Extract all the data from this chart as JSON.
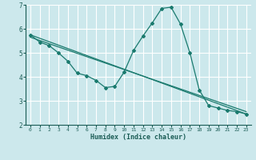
{
  "xlabel": "Humidex (Indice chaleur)",
  "ylabel": "",
  "xlim": [
    -0.5,
    23.5
  ],
  "ylim": [
    2,
    7
  ],
  "yticks": [
    2,
    3,
    4,
    5,
    6,
    7
  ],
  "xticks": [
    0,
    1,
    2,
    3,
    4,
    5,
    6,
    7,
    8,
    9,
    10,
    11,
    12,
    13,
    14,
    15,
    16,
    17,
    18,
    19,
    20,
    21,
    22,
    23
  ],
  "background_color": "#cce8ec",
  "grid_color": "#ffffff",
  "line_color": "#1a7a6e",
  "curve1_x": [
    0,
    1,
    2,
    3,
    4,
    5,
    6,
    7,
    8,
    9,
    10,
    11,
    12,
    13,
    14,
    15,
    16,
    17,
    18,
    19,
    20,
    21,
    22,
    23
  ],
  "curve1_y": [
    5.75,
    5.45,
    5.3,
    5.0,
    4.65,
    4.15,
    4.05,
    3.85,
    3.55,
    3.6,
    4.2,
    5.1,
    5.7,
    6.25,
    6.85,
    6.9,
    6.2,
    5.0,
    3.45,
    2.8,
    2.7,
    2.6,
    2.55,
    2.45
  ],
  "curve2_x": [
    0,
    23
  ],
  "curve2_y": [
    5.75,
    2.45
  ],
  "curve3_x": [
    0,
    23
  ],
  "curve3_y": [
    5.65,
    2.55
  ]
}
